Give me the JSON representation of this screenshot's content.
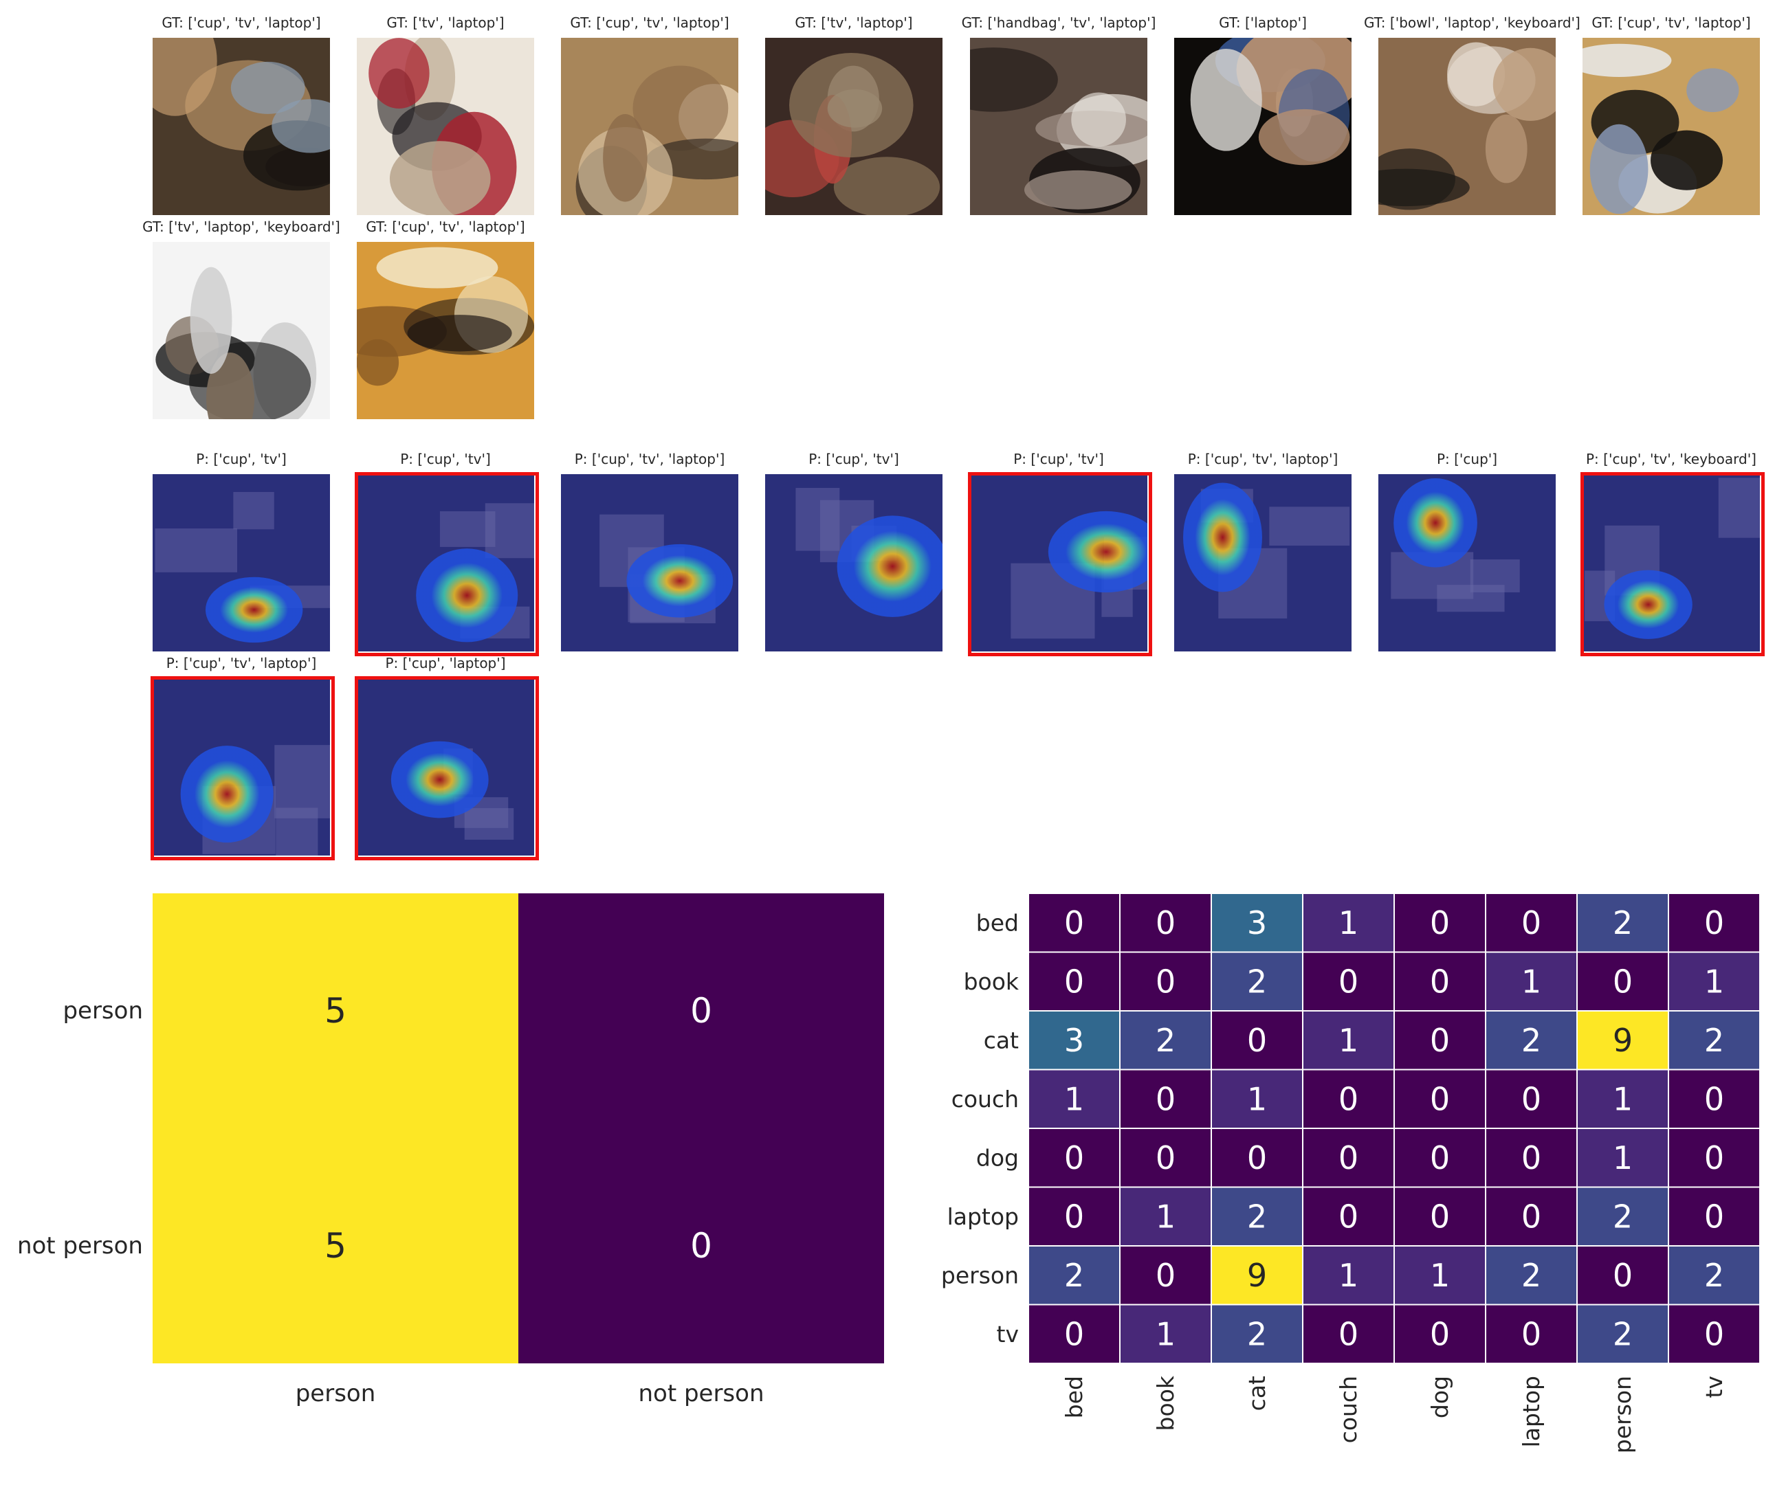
{
  "gt_panels": [
    {
      "title": "GT: ['cup', 'tv', 'laptop']",
      "palette": [
        "#4a3a2a",
        "#c9a070",
        "#1b1612",
        "#8a9cb0"
      ]
    },
    {
      "title": "GT: ['tv', 'laptop']",
      "palette": [
        "#ece5da",
        "#b8a48c",
        "#1e1a1e",
        "#a8202e"
      ]
    },
    {
      "title": "GT: ['cup', 'tv', 'laptop']",
      "palette": [
        "#a8865a",
        "#2e2520",
        "#d9c2a0",
        "#8a6848"
      ]
    },
    {
      "title": "GT: ['tv', 'laptop']",
      "palette": [
        "#3a2a24",
        "#b8453e",
        "#cfc8bc",
        "#8a7458"
      ]
    },
    {
      "title": "GT: ['handbag', 'tv', 'laptop']",
      "palette": [
        "#5a4a40",
        "#e8e2dc",
        "#1a1614",
        "#9a8a80"
      ]
    },
    {
      "title": "GT: ['laptop']",
      "palette": [
        "#0e0c0a",
        "#d8d6d2",
        "#3a5a9a",
        "#b89070"
      ]
    },
    {
      "title": "GT: ['bowl', 'laptop', 'keyboard']",
      "palette": [
        "#8a6a4c",
        "#e6ddd2",
        "#1c1816",
        "#c0a080"
      ]
    },
    {
      "title": "GT: ['cup', 'tv', 'laptop']",
      "palette": [
        "#c8a060",
        "#eaeef2",
        "#141210",
        "#8898b8"
      ]
    },
    {
      "title": "GT: ['tv', 'laptop', 'keyboard']",
      "palette": [
        "#f4f4f4",
        "#141414",
        "#7a6a5a",
        "#cfcfcf"
      ]
    },
    {
      "title": "GT: ['cup', 'tv', 'laptop']",
      "palette": [
        "#d89a3a",
        "#8a5a24",
        "#181210",
        "#f2e6c6"
      ]
    }
  ],
  "pred_panels": [
    {
      "title": "P: ['cup', 'tv']",
      "highlight": false
    },
    {
      "title": "P: ['cup', 'tv']",
      "highlight": true
    },
    {
      "title": "P: ['cup', 'tv', 'laptop']",
      "highlight": false
    },
    {
      "title": "P: ['cup', 'tv']",
      "highlight": false
    },
    {
      "title": "P: ['cup', 'tv']",
      "highlight": true
    },
    {
      "title": "P: ['cup', 'tv', 'laptop']",
      "highlight": false
    },
    {
      "title": "P: ['cup']",
      "highlight": false
    },
    {
      "title": "P: ['cup', 'tv', 'keyboard']",
      "highlight": true
    },
    {
      "title": "P: ['cup', 'tv', 'laptop']",
      "highlight": true
    },
    {
      "title": "P: ['cup', 'laptop']",
      "highlight": true
    }
  ],
  "chart_data": [
    {
      "type": "heatmap",
      "rows": [
        "person",
        "not person"
      ],
      "cols": [
        "person",
        "not person"
      ],
      "values": [
        [
          5,
          0
        ],
        [
          5,
          0
        ]
      ],
      "colormap": "viridis",
      "vmin": 0,
      "vmax": 5
    },
    {
      "type": "heatmap",
      "rows": [
        "bed",
        "book",
        "cat",
        "couch",
        "dog",
        "laptop",
        "person",
        "tv"
      ],
      "cols": [
        "bed",
        "book",
        "cat",
        "couch",
        "dog",
        "laptop",
        "person",
        "tv"
      ],
      "values": [
        [
          0,
          0,
          3,
          1,
          0,
          0,
          2,
          0
        ],
        [
          0,
          0,
          2,
          0,
          0,
          1,
          0,
          1
        ],
        [
          3,
          2,
          0,
          1,
          0,
          2,
          9,
          2
        ],
        [
          1,
          0,
          1,
          0,
          0,
          0,
          1,
          0
        ],
        [
          0,
          0,
          0,
          0,
          0,
          0,
          1,
          0
        ],
        [
          0,
          1,
          2,
          0,
          0,
          0,
          2,
          0
        ],
        [
          2,
          0,
          9,
          1,
          1,
          2,
          0,
          2
        ],
        [
          0,
          1,
          2,
          0,
          0,
          0,
          2,
          0
        ]
      ],
      "colormap": "viridis",
      "vmin": 0,
      "vmax": 9
    }
  ]
}
